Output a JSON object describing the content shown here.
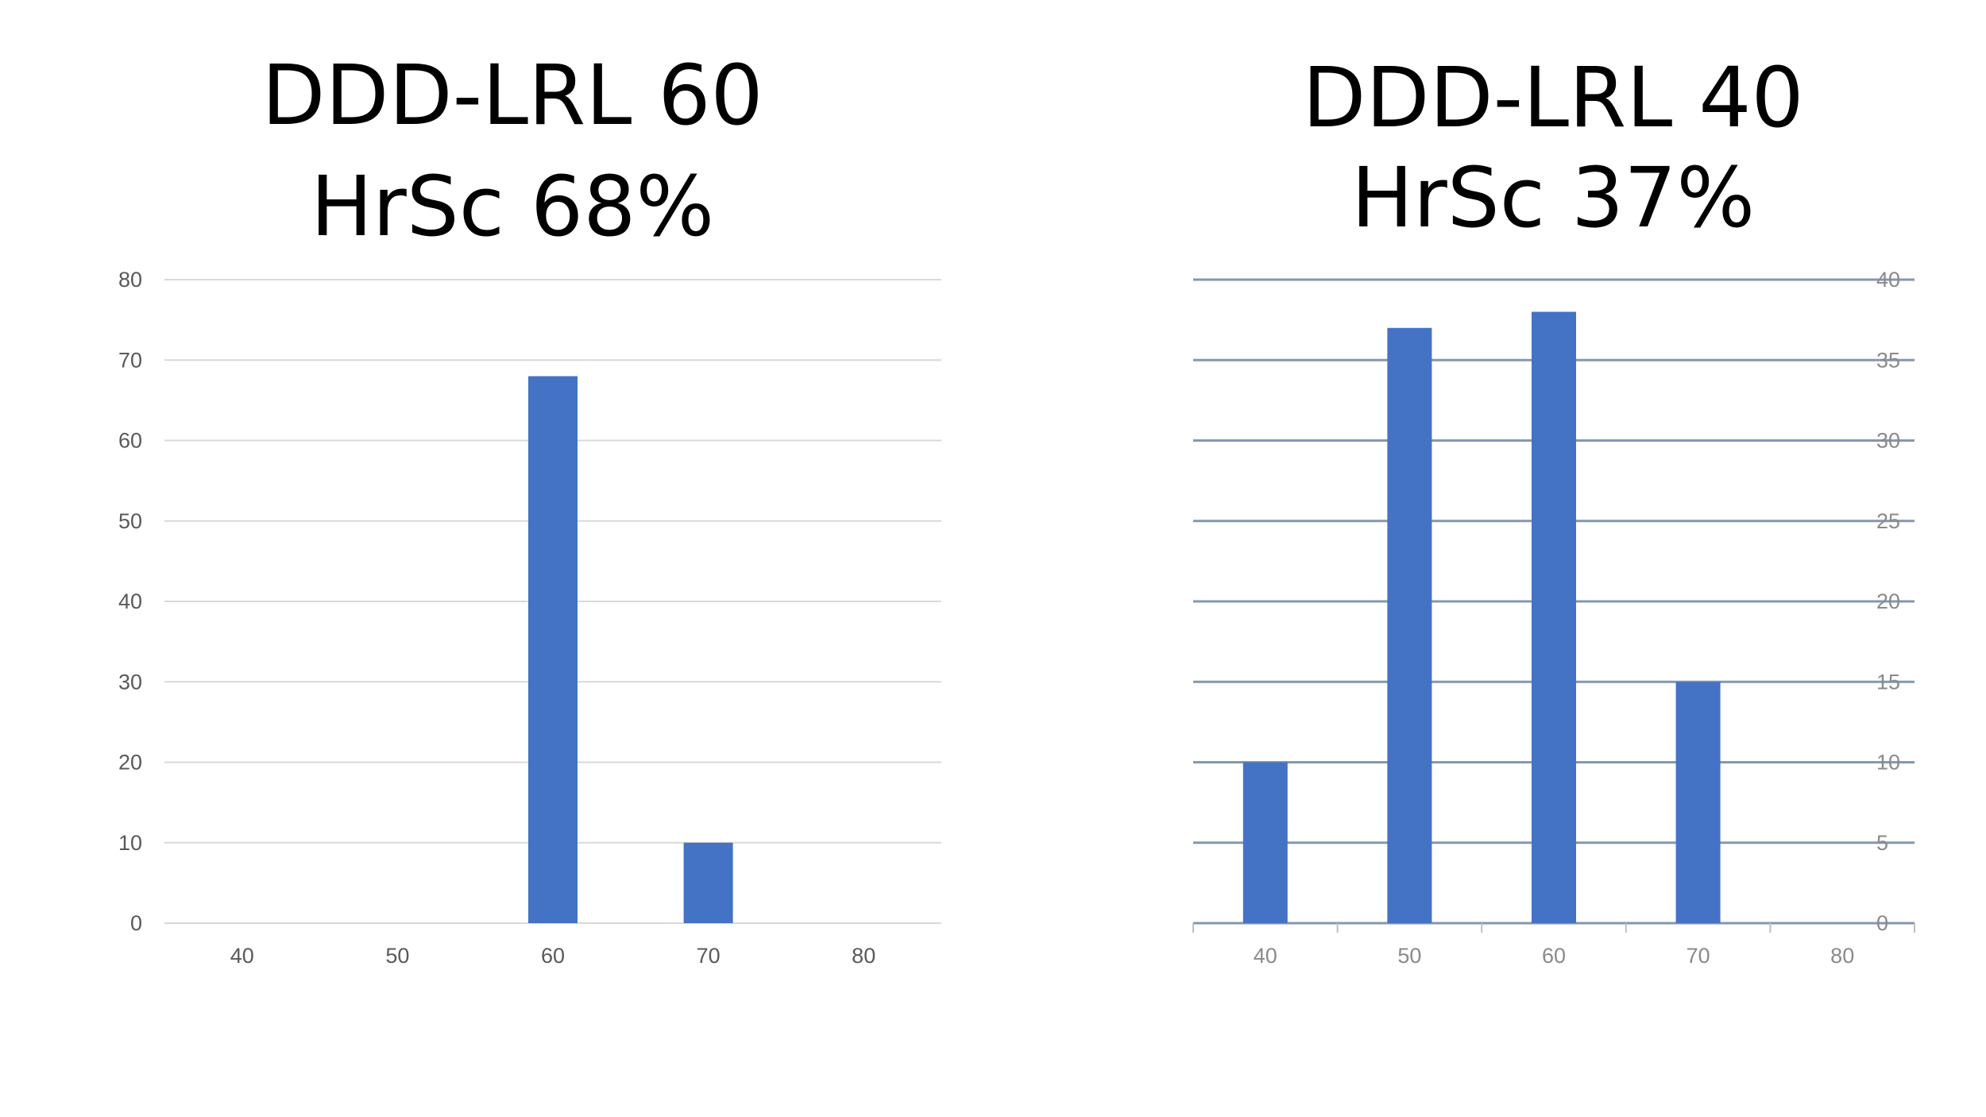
{
  "chart_data": [
    {
      "type": "bar",
      "title_lines": [
        "DDD-LRL 60",
        "HrSc 68%"
      ],
      "categories": [
        "40",
        "50",
        "60",
        "70",
        "80"
      ],
      "values": [
        0,
        0,
        68,
        10,
        0
      ],
      "ylim": [
        0,
        80
      ],
      "yticks": [
        0,
        10,
        20,
        30,
        40,
        50,
        60,
        70,
        80
      ],
      "y_axis_side": "left",
      "grid": true,
      "bar_color": "#4472C4",
      "grid_color": "#D9D9D9",
      "xlabel": "",
      "ylabel": ""
    },
    {
      "type": "bar",
      "title_lines": [
        "DDD-LRL 40",
        "HrSc 37%"
      ],
      "categories": [
        "40",
        "50",
        "60",
        "70",
        "80"
      ],
      "values": [
        10,
        37,
        38,
        15,
        0
      ],
      "ylim": [
        0,
        40
      ],
      "yticks": [
        0,
        5,
        10,
        15,
        20,
        25,
        30,
        35,
        40
      ],
      "y_axis_side": "right",
      "grid": true,
      "bar_color": "#4472C4",
      "grid_color": "#8497B0",
      "xlabel": "",
      "ylabel": ""
    }
  ]
}
